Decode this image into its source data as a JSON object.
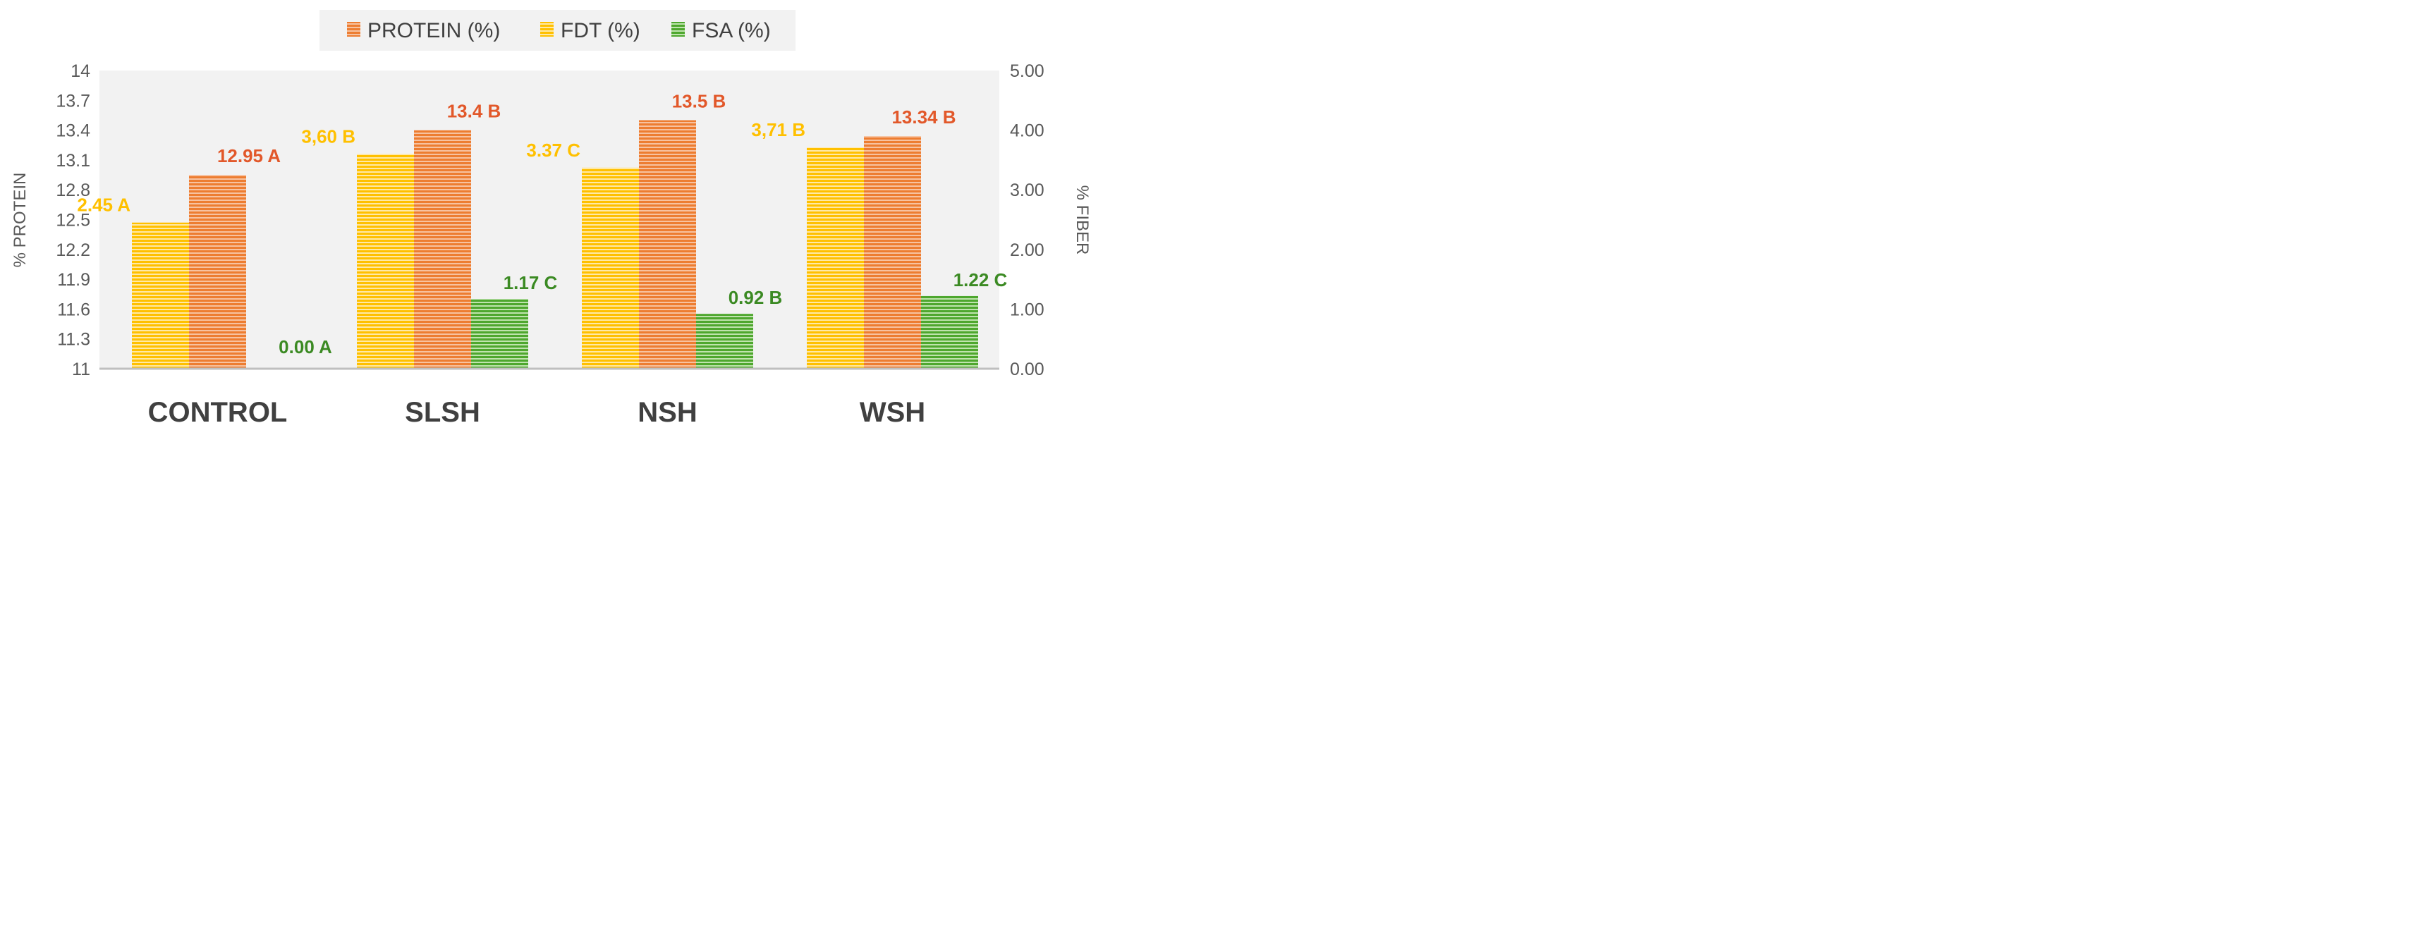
{
  "chart_data": {
    "type": "bar",
    "categories": [
      "CONTROL",
      "SLSH",
      "NSH",
      "WSH"
    ],
    "series": [
      {
        "name": "PROTEIN (%)",
        "axis": "left",
        "values": [
          12.95,
          13.4,
          13.5,
          13.34
        ],
        "labels": [
          "12.95 A",
          "13.4 B",
          "13.5 B",
          "13.34 B"
        ],
        "color": "#ED7D31",
        "label_color": "#E2582A"
      },
      {
        "name": "FDT (%)",
        "axis": "right",
        "values": [
          2.45,
          3.6,
          3.37,
          3.71
        ],
        "labels": [
          "2.45 A",
          "3,60 B",
          "3.37 C",
          "3,71 B"
        ],
        "color": "#FFC000",
        "label_color": "#FFC000"
      },
      {
        "name": "FSA (%)",
        "axis": "right",
        "values": [
          0.0,
          1.17,
          0.92,
          1.22
        ],
        "labels": [
          "0.00 A",
          "1.17 C",
          "0.92 B",
          "1.22 C"
        ],
        "color": "#4EA72E",
        "label_color": "#3B8A23"
      }
    ],
    "y_left": {
      "label": "% PROTEIN",
      "range": [
        11,
        14
      ],
      "ticks": [
        "11",
        "11.3",
        "11.6",
        "11.9",
        "12.2",
        "12.5",
        "12.8",
        "13.1",
        "13.4",
        "13.7",
        "14"
      ]
    },
    "y_right": {
      "label": "% FIBER",
      "range": [
        0,
        5
      ],
      "ticks": [
        "0.00",
        "1.00",
        "2.00",
        "3.00",
        "4.00",
        "5.00"
      ]
    },
    "legend": {
      "position": "top",
      "entries": [
        "PROTEIN (%)",
        "FDT (%)",
        "FSA (%)"
      ]
    },
    "grid": false
  }
}
